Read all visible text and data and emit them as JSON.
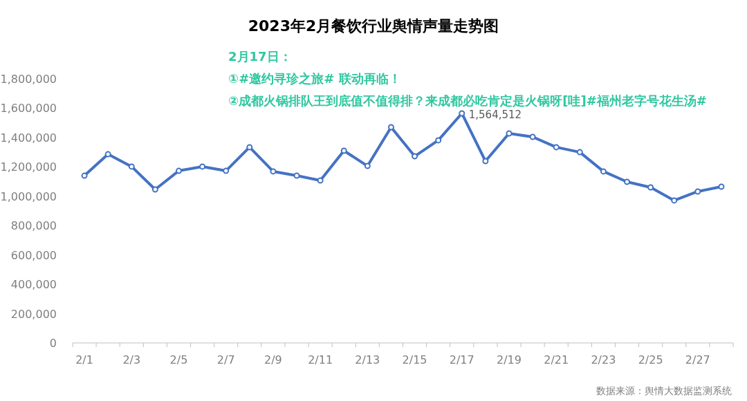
{
  "chart_data": {
    "type": "line",
    "title": "2023年2月餐饮行业舆情声量走势图",
    "categories": [
      "2/1",
      null,
      "2/3",
      null,
      "2/5",
      null,
      "2/7",
      null,
      "2/9",
      null,
      "2/11",
      null,
      "2/13",
      null,
      "2/15",
      null,
      "2/17",
      null,
      "2/19",
      null,
      "2/21",
      null,
      "2/23",
      null,
      "2/25",
      null,
      "2/27",
      null
    ],
    "values": [
      1140000,
      1286000,
      1202000,
      1046000,
      1173000,
      1202000,
      1173000,
      1334000,
      1169000,
      1140000,
      1107000,
      1310000,
      1206000,
      1470000,
      1272000,
      1381000,
      1564512,
      1239000,
      1428000,
      1404000,
      1334000,
      1300000,
      1169000,
      1098000,
      1060000,
      971000,
      1032000,
      1065000
    ],
    "value_labels": [
      null,
      null,
      null,
      null,
      null,
      null,
      null,
      null,
      null,
      null,
      null,
      null,
      null,
      null,
      null,
      null,
      "1,564,512",
      null,
      null,
      null,
      null,
      null,
      null,
      null,
      null,
      null,
      null,
      null
    ],
    "color": "#4472c4",
    "marker": "circle",
    "ylim": [
      0,
      1800000
    ],
    "yticks": [
      {
        "value": 0,
        "label": "0"
      },
      {
        "value": 200000,
        "label": "200,000"
      },
      {
        "value": 400000,
        "label": "400,000"
      },
      {
        "value": 600000,
        "label": "600,000"
      },
      {
        "value": 800000,
        "label": "800,000"
      },
      {
        "value": 1000000,
        "label": "1,000,000"
      },
      {
        "value": 1200000,
        "label": "1,200,000"
      },
      {
        "value": 1400000,
        "label": "1,400,000"
      },
      {
        "value": 1600000,
        "label": "1,600,000"
      },
      {
        "value": 1800000,
        "label": "1,800,000"
      }
    ],
    "annotations": [
      "2月17日：",
      "①#邀约寻珍之旅# 联动再临！",
      "②成都火锅排队王到底值不值得排？来成都必吃肯定是火锅呀[哇]#福州老字号花生汤#",
      "数据来源：舆情大数据监测系统"
    ]
  }
}
